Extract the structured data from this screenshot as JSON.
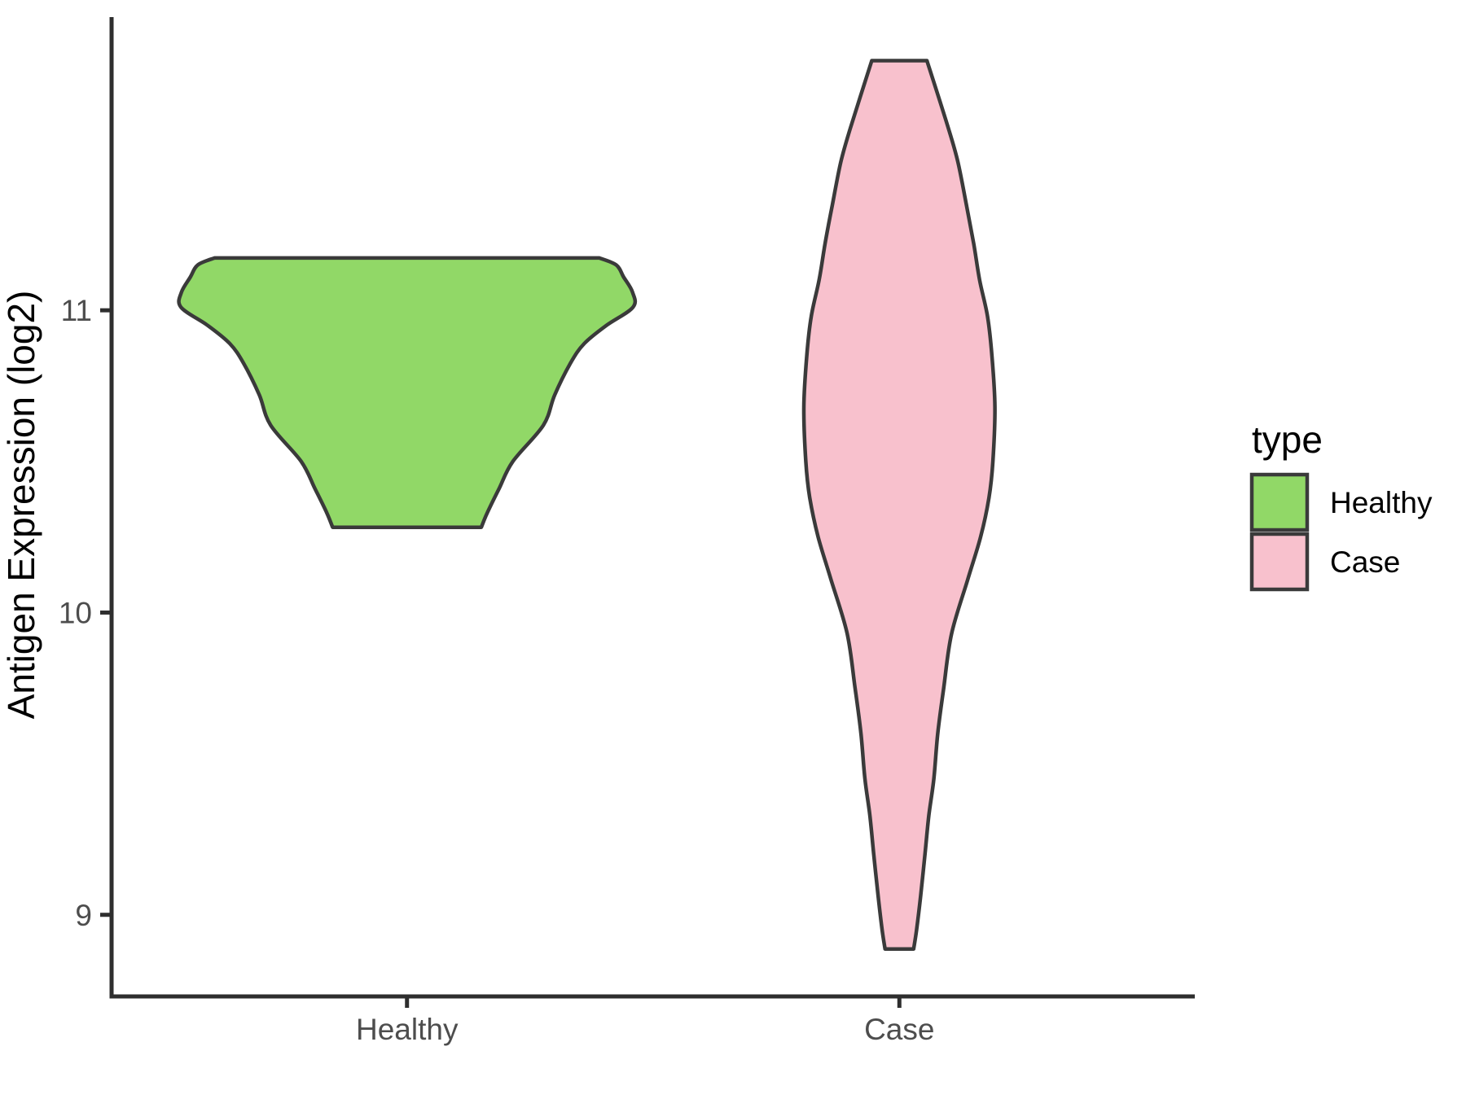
{
  "chart_data": {
    "type": "violin",
    "title": "",
    "xlabel": "",
    "ylabel": "Antigen Expression (log2)",
    "categories": [
      "Healthy",
      "Case"
    ],
    "yticks": [
      9,
      10,
      11
    ],
    "ylim": [
      8.73,
      11.97
    ],
    "xlim": [
      0.4,
      2.6
    ],
    "grid": false,
    "background": "#FFFFFF",
    "axis_color": "#2E2E2E",
    "tick_label_color": "#4D4D4D",
    "outline_color": "#3A3A3A",
    "legend": {
      "title": "type",
      "position": "right",
      "entries": [
        {
          "label": "Healthy",
          "color": "#91D867"
        },
        {
          "label": "Case",
          "color": "#F8C1CD"
        }
      ]
    },
    "series": [
      {
        "name": "Healthy",
        "x": 1,
        "fill": "#91D867",
        "range": [
          10.28,
          11.17
        ],
        "profile": [
          [
            11.173,
            0.391
          ],
          [
            11.15,
            0.425
          ],
          [
            11.11,
            0.44
          ],
          [
            11.06,
            0.458
          ],
          [
            11.01,
            0.459
          ],
          [
            10.95,
            0.405
          ],
          [
            10.89,
            0.36
          ],
          [
            10.825,
            0.332
          ],
          [
            10.72,
            0.3
          ],
          [
            10.62,
            0.277
          ],
          [
            10.5,
            0.215
          ],
          [
            10.41,
            0.187
          ],
          [
            10.33,
            0.163
          ],
          [
            10.282,
            0.151
          ]
        ]
      },
      {
        "name": "Case",
        "x": 2,
        "fill": "#F8C1CD",
        "range": [
          8.89,
          11.83
        ],
        "profile": [
          [
            11.826,
            0.056
          ],
          [
            11.6,
            0.1
          ],
          [
            11.49,
            0.119
          ],
          [
            11.35,
            0.136
          ],
          [
            11.22,
            0.151
          ],
          [
            11.1,
            0.163
          ],
          [
            10.98,
            0.179
          ],
          [
            10.85,
            0.188
          ],
          [
            10.68,
            0.194
          ],
          [
            10.5,
            0.19
          ],
          [
            10.38,
            0.182
          ],
          [
            10.25,
            0.165
          ],
          [
            10.11,
            0.139
          ],
          [
            9.93,
            0.106
          ],
          [
            9.75,
            0.09
          ],
          [
            9.6,
            0.078
          ],
          [
            9.45,
            0.07
          ],
          [
            9.33,
            0.06
          ],
          [
            9.2,
            0.052
          ],
          [
            9.06,
            0.043
          ],
          [
            8.95,
            0.035
          ],
          [
            8.887,
            0.029
          ]
        ]
      }
    ]
  }
}
